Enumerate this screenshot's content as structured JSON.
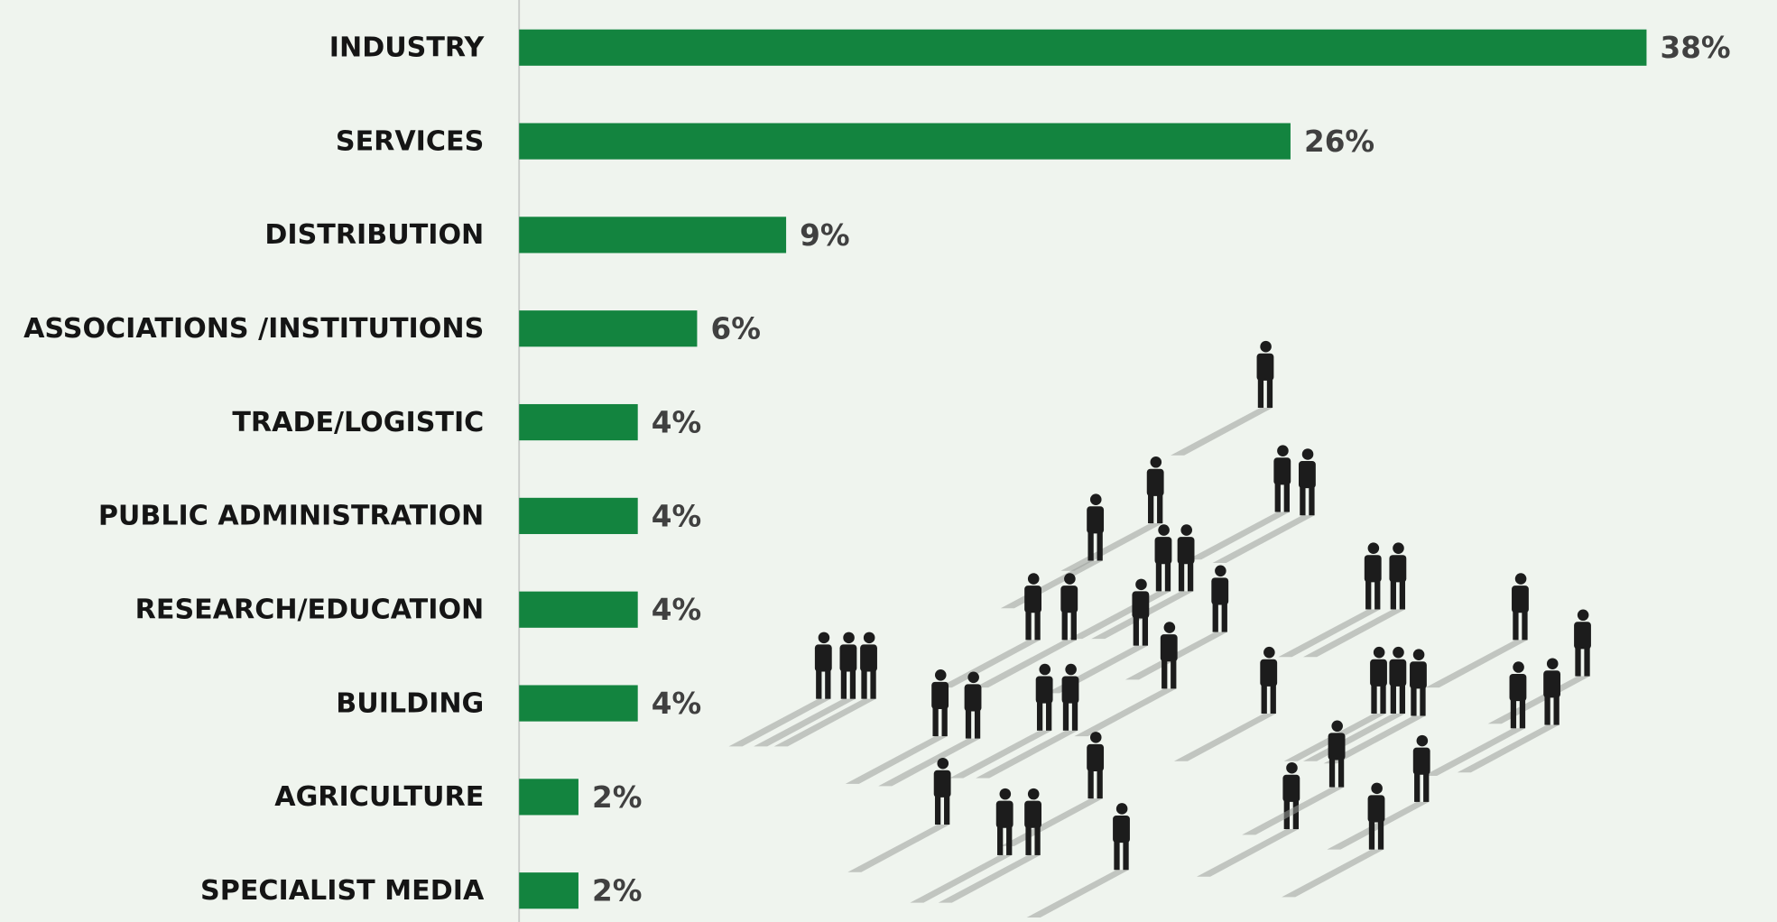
{
  "chart_data": {
    "type": "bar",
    "orientation": "horizontal",
    "categories": [
      "INDUSTRY",
      "SERVICES",
      "DISTRIBUTION",
      "ASSOCIATIONS /INSTITUTIONS",
      "TRADE/LOGISTIC",
      "PUBLIC ADMINISTRATION",
      "RESEARCH/EDUCATION",
      "BUILDING",
      "AGRICULTURE",
      "SPECIALIST MEDIA"
    ],
    "values": [
      38,
      26,
      9,
      6,
      4,
      4,
      4,
      4,
      2,
      2
    ],
    "value_labels": [
      "38%",
      "26%",
      "9%",
      "6%",
      "4%",
      "4%",
      "4%",
      "4%",
      "2%",
      "2%"
    ],
    "color": "#13843f"
  }
}
